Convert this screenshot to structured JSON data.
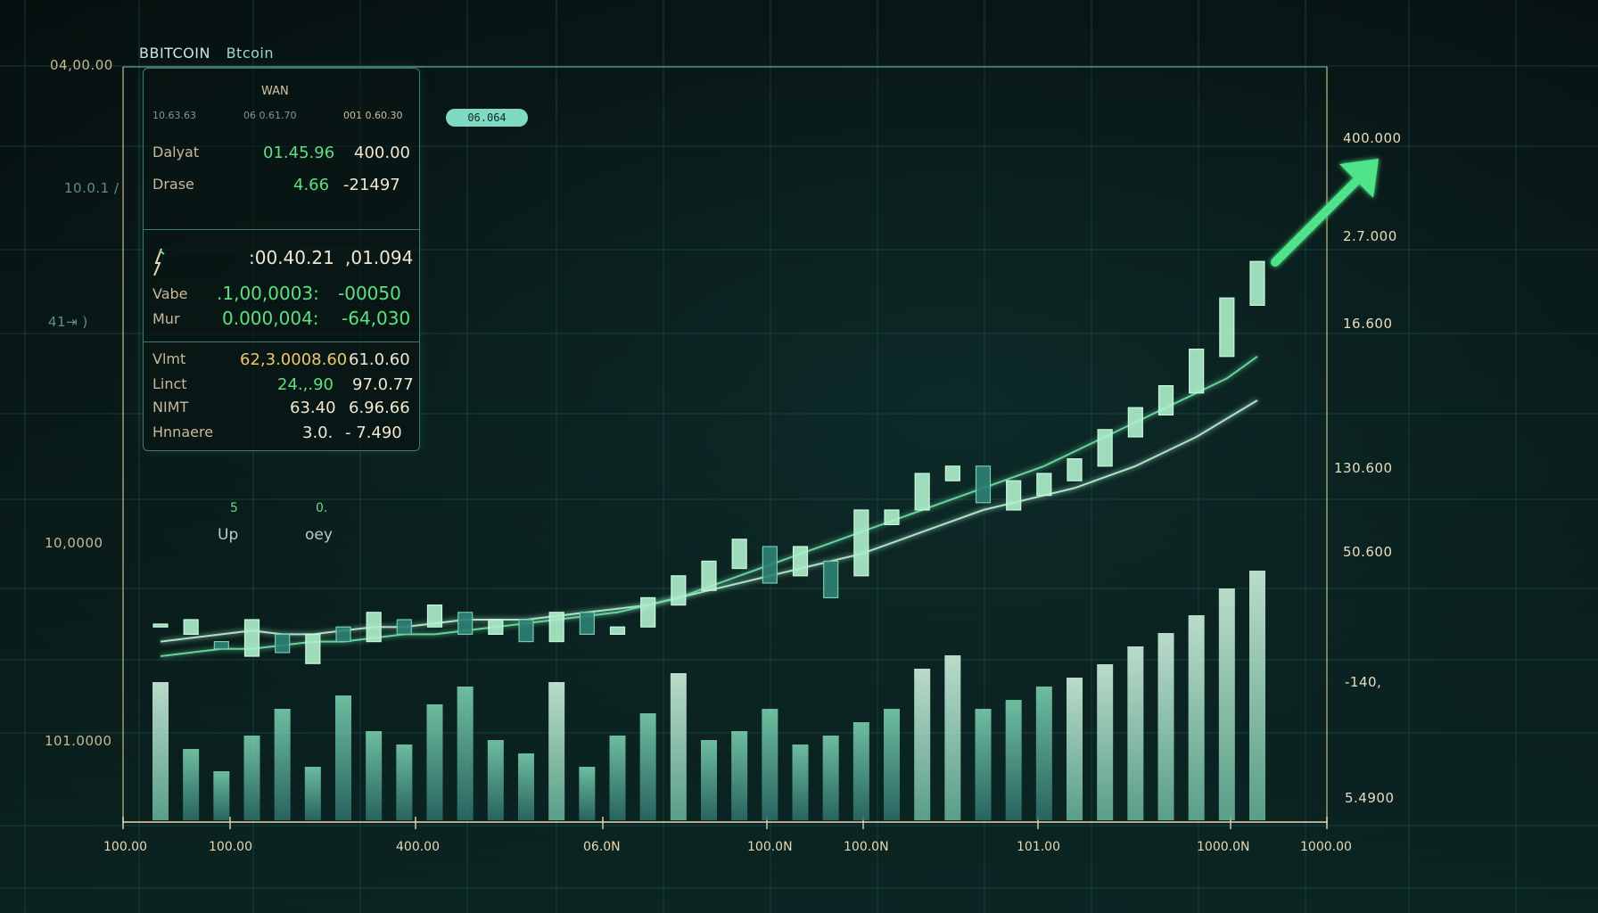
{
  "header": {
    "title": "BBITCOIN",
    "subtitle": "Btcoin"
  },
  "pill_label": "06.064",
  "panel": {
    "title": "WAN",
    "head_left": "10.63.63",
    "head_mid": "06 0.61.70",
    "head_right": "001 0.60.30",
    "rows_a": [
      {
        "label": "Dalyat",
        "mid": "01.45.96",
        "right": "400.00"
      },
      {
        "label": "Drase",
        "mid": "4.66",
        "right": "-21497"
      }
    ],
    "spark_row": {
      "mid": ":00.40.21",
      "right": ",01.094"
    },
    "rows_b": [
      {
        "label": "Vabe",
        "mid": ".1,00,0003:",
        "right": "-00050"
      },
      {
        "label": "Mur",
        "mid": "0.000,004:",
        "right": "-64,030"
      }
    ],
    "rows_c": [
      {
        "label": "Vlmt",
        "mid": "62,3.0008.60",
        "right": "61.0.60"
      },
      {
        "label": "Linct",
        "mid": "24.,.90",
        "right": "97.0.77"
      },
      {
        "label": "NIMT",
        "mid": "63.40",
        "right": "6.96.66"
      },
      {
        "label": "Hnnaere",
        "mid": "3.0.",
        "right": "- 7.490"
      }
    ]
  },
  "updown": {
    "up_num": "5",
    "up_label": "Up",
    "down_num": "0.",
    "down_label": "oey"
  },
  "y_axis_left": [
    {
      "text": "04,00.00"
    },
    {
      "text": "10.0.1 /"
    },
    {
      "text": "41⇥ )"
    },
    {
      "text": "10,0000"
    },
    {
      "text": "101.0000"
    }
  ],
  "y_axis_right": [
    "400.000",
    "2.7.000",
    "16.600",
    "130.600",
    "50.600",
    "-140,",
    "5.4900"
  ],
  "x_axis": [
    "100.00",
    "100.00",
    "400.00",
    "06.0N",
    "100.0N",
    "100.0N",
    "101.00",
    "1000.0N",
    "1000.00"
  ],
  "colors": {
    "up": "#8fe8b4",
    "down": "#2f8f86",
    "line": "#7fe3b0",
    "arrow": "#4fe38a",
    "grid": "#1f4f4b"
  },
  "chart_data": {
    "type": "candlestick",
    "title": "BBITCOIN Btcoin",
    "ylim": [
      0,
      100
    ],
    "candles": [
      {
        "o": 24,
        "c": 24.4,
        "h": 27,
        "l": 22,
        "v": 31
      },
      {
        "o": 23,
        "c": 25,
        "h": 29,
        "l": 20,
        "v": 16
      },
      {
        "o": 22,
        "c": 21,
        "h": 26,
        "l": 19,
        "v": 11
      },
      {
        "o": 20,
        "c": 25,
        "h": 27,
        "l": 18,
        "v": 19
      },
      {
        "o": 23,
        "c": 20.5,
        "h": 24,
        "l": 17,
        "v": 25
      },
      {
        "o": 19,
        "c": 23,
        "h": 26,
        "l": 16,
        "v": 12
      },
      {
        "o": 24,
        "c": 22,
        "h": 28,
        "l": 21,
        "v": 28
      },
      {
        "o": 22,
        "c": 26,
        "h": 30,
        "l": 20,
        "v": 20
      },
      {
        "o": 25,
        "c": 23,
        "h": 28,
        "l": 20,
        "v": 17
      },
      {
        "o": 24,
        "c": 27,
        "h": 30,
        "l": 21,
        "v": 26
      },
      {
        "o": 26,
        "c": 23,
        "h": 27,
        "l": 20,
        "v": 30
      },
      {
        "o": 23,
        "c": 25,
        "h": 29,
        "l": 22,
        "v": 18
      },
      {
        "o": 25,
        "c": 22,
        "h": 27,
        "l": 20,
        "v": 15
      },
      {
        "o": 22,
        "c": 26,
        "h": 30,
        "l": 21,
        "v": 31
      },
      {
        "o": 26,
        "c": 23,
        "h": 28,
        "l": 20,
        "v": 12
      },
      {
        "o": 23,
        "c": 24,
        "h": 27,
        "l": 21,
        "v": 19
      },
      {
        "o": 24,
        "c": 28,
        "h": 32,
        "l": 22,
        "v": 24
      },
      {
        "o": 27,
        "c": 31,
        "h": 36,
        "l": 25,
        "v": 33
      },
      {
        "o": 29,
        "c": 33,
        "h": 37,
        "l": 26,
        "v": 18
      },
      {
        "o": 32,
        "c": 36,
        "h": 38,
        "l": 28,
        "v": 20
      },
      {
        "o": 35,
        "c": 30,
        "h": 39,
        "l": 27,
        "v": 25
      },
      {
        "o": 31,
        "c": 35,
        "h": 36,
        "l": 28,
        "v": 17
      },
      {
        "o": 33,
        "c": 28,
        "h": 34,
        "l": 24,
        "v": 19
      },
      {
        "o": 31,
        "c": 40,
        "h": 45,
        "l": 30,
        "v": 22
      },
      {
        "o": 38,
        "c": 40,
        "h": 48,
        "l": 34,
        "v": 25
      },
      {
        "o": 40,
        "c": 45,
        "h": 51,
        "l": 37,
        "v": 34
      },
      {
        "o": 44,
        "c": 46,
        "h": 53,
        "l": 41,
        "v": 37
      },
      {
        "o": 46,
        "c": 41,
        "h": 50,
        "l": 39,
        "v": 25
      },
      {
        "o": 40,
        "c": 44,
        "h": 47,
        "l": 37,
        "v": 27
      },
      {
        "o": 42,
        "c": 45,
        "h": 51,
        "l": 41,
        "v": 30
      },
      {
        "o": 44,
        "c": 47,
        "h": 49,
        "l": 42,
        "v": 32
      },
      {
        "o": 46,
        "c": 51,
        "h": 55,
        "l": 43,
        "v": 35
      },
      {
        "o": 50,
        "c": 54,
        "h": 58,
        "l": 47,
        "v": 39
      },
      {
        "o": 53,
        "c": 57,
        "h": 61,
        "l": 50,
        "v": 42
      },
      {
        "o": 56,
        "c": 62,
        "h": 68,
        "l": 53,
        "v": 46
      },
      {
        "o": 61,
        "c": 69,
        "h": 76,
        "l": 58,
        "v": 52
      },
      {
        "o": 68,
        "c": 74,
        "h": 80,
        "l": 62,
        "v": 56
      }
    ],
    "moving_averages": [
      {
        "values": [
          22,
          22.5,
          23,
          23.5,
          23,
          23,
          23.5,
          24,
          24,
          24.5,
          25,
          25,
          25,
          25.5,
          26,
          26.5,
          27,
          28,
          29,
          30,
          31,
          32,
          33,
          34,
          35.5,
          37,
          38.5,
          40,
          41,
          42,
          43,
          44.5,
          46,
          48,
          50,
          52.5,
          55
        ]
      },
      {
        "values": [
          20,
          20.5,
          21,
          21,
          21.5,
          22,
          22,
          22.5,
          23,
          23,
          23.5,
          24,
          24.5,
          25,
          25.5,
          26,
          27,
          28,
          29.5,
          31,
          32.5,
          34,
          35.5,
          37,
          38.5,
          40,
          41.5,
          43,
          44.5,
          46,
          48,
          50,
          52,
          54,
          56,
          58,
          61
        ]
      }
    ]
  }
}
